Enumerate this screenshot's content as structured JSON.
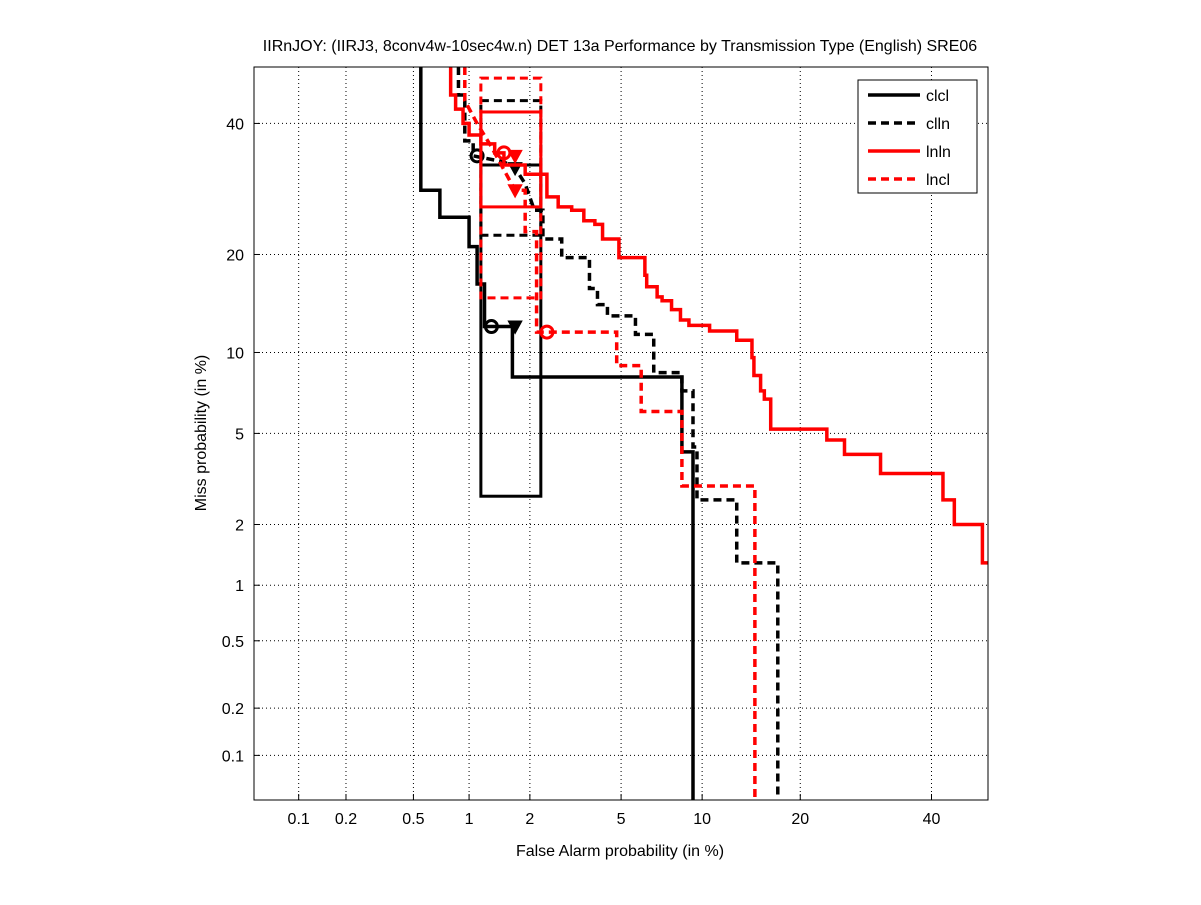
{
  "chart_data": {
    "type": "line",
    "title": "IIRnJOY: (IIRJ3, 8conv4w-10sec4w.n) DET 13a Performance by Transmission Type (English) SRE06",
    "xlabel": "False Alarm probability (in %)",
    "ylabel": "Miss probability (in %)",
    "x_scale": "probit",
    "y_scale": "probit",
    "xlim": [
      0.05,
      50
    ],
    "ylim": [
      0.05,
      50
    ],
    "grid": true,
    "legend_position": "top-right",
    "x_ticks": [
      0.1,
      0.2,
      0.5,
      1,
      2,
      5,
      10,
      20,
      40
    ],
    "x_tick_labels": [
      "0.1",
      "0.2",
      "0.5",
      "1",
      "2",
      "5",
      "10",
      "20",
      "40"
    ],
    "y_ticks": [
      0.1,
      0.2,
      0.5,
      1,
      2,
      5,
      10,
      20,
      40
    ],
    "y_tick_labels": [
      "0.1",
      "0.2",
      "0.5",
      "1",
      "2",
      "5",
      "10",
      "20",
      "40"
    ],
    "series": [
      {
        "name": "clcl",
        "color": "#000000",
        "dash": "solid",
        "points": [
          [
            0.55,
            50
          ],
          [
            0.55,
            29
          ],
          [
            0.7,
            29
          ],
          [
            0.7,
            25
          ],
          [
            1.0,
            25
          ],
          [
            1.0,
            21
          ],
          [
            1.1,
            21
          ],
          [
            1.1,
            16.5
          ],
          [
            1.2,
            16.5
          ],
          [
            1.2,
            12.2
          ],
          [
            1.65,
            12.2
          ],
          [
            1.65,
            8.2
          ],
          [
            8.5,
            8.2
          ],
          [
            8.5,
            4.2
          ],
          [
            9.3,
            4.2
          ],
          [
            9.3,
            0.05
          ]
        ],
        "box": {
          "x": [
            1.15,
            2.25
          ],
          "y": [
            2.7,
            33
          ]
        },
        "actual_dcf": [
          1.3,
          12.2
        ],
        "min_dcf": [
          1.7,
          12.2
        ]
      },
      {
        "name": "clln",
        "color": "#000000",
        "dash": "dashed",
        "points": [
          [
            0.88,
            50
          ],
          [
            0.88,
            45
          ],
          [
            0.95,
            45
          ],
          [
            0.95,
            37
          ],
          [
            1.05,
            37
          ],
          [
            1.05,
            34.5
          ],
          [
            1.5,
            33.5
          ],
          [
            1.7,
            32.5
          ],
          [
            1.9,
            30
          ],
          [
            2.1,
            26
          ],
          [
            2.3,
            26
          ],
          [
            2.3,
            22
          ],
          [
            2.8,
            22
          ],
          [
            2.8,
            19.6
          ],
          [
            3.7,
            19.6
          ],
          [
            3.7,
            16
          ],
          [
            4.0,
            16
          ],
          [
            4.0,
            14.3
          ],
          [
            4.4,
            14.3
          ],
          [
            4.4,
            13.2
          ],
          [
            5.7,
            13.2
          ],
          [
            5.7,
            11.5
          ],
          [
            6.7,
            11.5
          ],
          [
            6.7,
            8.5
          ],
          [
            8.5,
            8.5
          ],
          [
            8.5,
            7.3
          ],
          [
            9.3,
            7.3
          ],
          [
            9.3,
            4.4
          ],
          [
            9.6,
            4.4
          ],
          [
            9.6,
            2.6
          ],
          [
            13,
            2.6
          ],
          [
            13,
            1.3
          ],
          [
            17.3,
            1.3
          ],
          [
            17.3,
            0.05
          ]
        ],
        "box": {
          "x": [
            1.15,
            2.25
          ],
          "y": [
            22.5,
            44
          ]
        },
        "actual_dcf": [
          1.1,
          34.5
        ],
        "min_dcf": [
          1.7,
          32.5
        ]
      },
      {
        "name": "lnln",
        "color": "#ff0000",
        "dash": "solid",
        "points": [
          [
            0.8,
            50
          ],
          [
            0.8,
            45
          ],
          [
            0.85,
            45
          ],
          [
            0.85,
            42.5
          ],
          [
            0.93,
            42.5
          ],
          [
            0.93,
            40
          ],
          [
            1.0,
            40
          ],
          [
            1.0,
            38
          ],
          [
            1.15,
            38
          ],
          [
            1.15,
            36.5
          ],
          [
            1.35,
            36.5
          ],
          [
            1.35,
            35
          ],
          [
            1.5,
            35
          ],
          [
            1.5,
            33
          ],
          [
            1.9,
            33
          ],
          [
            1.9,
            31.5
          ],
          [
            2.4,
            31.5
          ],
          [
            2.4,
            28
          ],
          [
            2.7,
            28
          ],
          [
            2.7,
            26.5
          ],
          [
            3.1,
            26.5
          ],
          [
            3.1,
            26
          ],
          [
            3.5,
            26
          ],
          [
            3.5,
            24.5
          ],
          [
            3.9,
            24.5
          ],
          [
            3.9,
            24
          ],
          [
            4.2,
            24
          ],
          [
            4.2,
            22
          ],
          [
            4.9,
            22
          ],
          [
            4.9,
            19.6
          ],
          [
            6.2,
            19.6
          ],
          [
            6.2,
            17.5
          ],
          [
            6.3,
            17.5
          ],
          [
            6.3,
            16.2
          ],
          [
            6.9,
            16.2
          ],
          [
            6.9,
            15.1
          ],
          [
            7.2,
            15.1
          ],
          [
            7.2,
            14.7
          ],
          [
            7.8,
            14.7
          ],
          [
            7.8,
            13.8
          ],
          [
            8.4,
            13.8
          ],
          [
            8.4,
            12.8
          ],
          [
            9.0,
            12.8
          ],
          [
            9.0,
            12.3
          ],
          [
            10.6,
            12.3
          ],
          [
            10.6,
            11.8
          ],
          [
            13,
            11.8
          ],
          [
            13,
            11
          ],
          [
            14.5,
            11
          ],
          [
            14.5,
            9.6
          ],
          [
            14.7,
            9.6
          ],
          [
            14.7,
            8.3
          ],
          [
            15.4,
            8.3
          ],
          [
            15.4,
            7.3
          ],
          [
            15.8,
            7.3
          ],
          [
            15.8,
            6.8
          ],
          [
            16.5,
            6.8
          ],
          [
            16.5,
            5.2
          ],
          [
            23.5,
            5.2
          ],
          [
            23.5,
            4.7
          ],
          [
            26,
            4.7
          ],
          [
            26,
            4.1
          ],
          [
            31.5,
            4.1
          ],
          [
            31.5,
            3.4
          ],
          [
            42,
            3.4
          ],
          [
            42,
            2.6
          ],
          [
            44,
            2.6
          ],
          [
            44,
            2.0
          ],
          [
            49,
            2.0
          ],
          [
            49,
            1.3
          ],
          [
            50,
            1.3
          ]
        ],
        "box": {
          "x": [
            1.15,
            2.25
          ],
          "y": [
            26.5,
            42
          ]
        },
        "actual_dcf": [
          1.5,
          35
        ],
        "min_dcf": [
          1.7,
          34.5
        ]
      },
      {
        "name": "lncl",
        "color": "#ff0000",
        "dash": "dashed",
        "points": [
          [
            0.95,
            50
          ],
          [
            0.95,
            44
          ],
          [
            1.1,
            40
          ],
          [
            1.3,
            36
          ],
          [
            1.7,
            29
          ],
          [
            1.9,
            29
          ],
          [
            1.9,
            23
          ],
          [
            2.15,
            23
          ],
          [
            2.15,
            11.7
          ],
          [
            4.8,
            11.7
          ],
          [
            4.8,
            9
          ],
          [
            6.0,
            9
          ],
          [
            6.0,
            6.1
          ],
          [
            8.5,
            6.1
          ],
          [
            8.5,
            3
          ],
          [
            14.8,
            3
          ],
          [
            14.8,
            0.05
          ]
        ],
        "box": {
          "x": [
            1.15,
            2.25
          ],
          "y": [
            15,
            48
          ]
        },
        "actual_dcf": [
          2.4,
          11.7
        ],
        "min_dcf": [
          1.7,
          29
        ]
      }
    ]
  }
}
